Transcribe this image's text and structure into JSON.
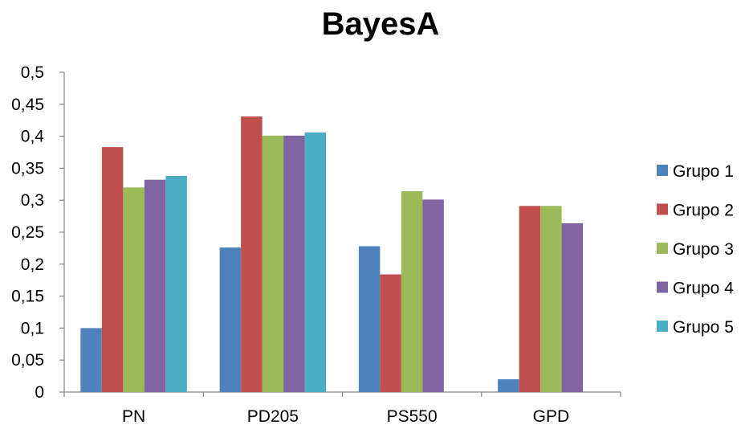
{
  "chart_data": {
    "type": "bar",
    "title": "BayesA",
    "xlabel": "",
    "ylabel": "",
    "categories": [
      "PN",
      "PD205",
      "PS550",
      "GPD"
    ],
    "ylim": [
      0,
      0.5
    ],
    "yticks": [
      "0",
      "0,05",
      "0,1",
      "0,15",
      "0,2",
      "0,25",
      "0,3",
      "0,35",
      "0,4",
      "0,45",
      "0,5"
    ],
    "grid": false,
    "legend_position": "right",
    "series": [
      {
        "name": "Grupo 1",
        "color": "#4F81BD",
        "values": [
          0.1,
          0.226,
          0.228,
          0.02
        ]
      },
      {
        "name": "Grupo 2",
        "color": "#C0504D",
        "values": [
          0.383,
          0.431,
          0.184,
          0.291
        ]
      },
      {
        "name": "Grupo 3",
        "color": "#9BBB59",
        "values": [
          0.32,
          0.401,
          0.314,
          0.291
        ]
      },
      {
        "name": "Grupo 4",
        "color": "#8064A2",
        "values": [
          0.332,
          0.401,
          0.301,
          0.264
        ]
      },
      {
        "name": "Grupo 5",
        "color": "#4BACC6",
        "values": [
          0.338,
          0.406,
          null,
          null
        ]
      }
    ]
  }
}
